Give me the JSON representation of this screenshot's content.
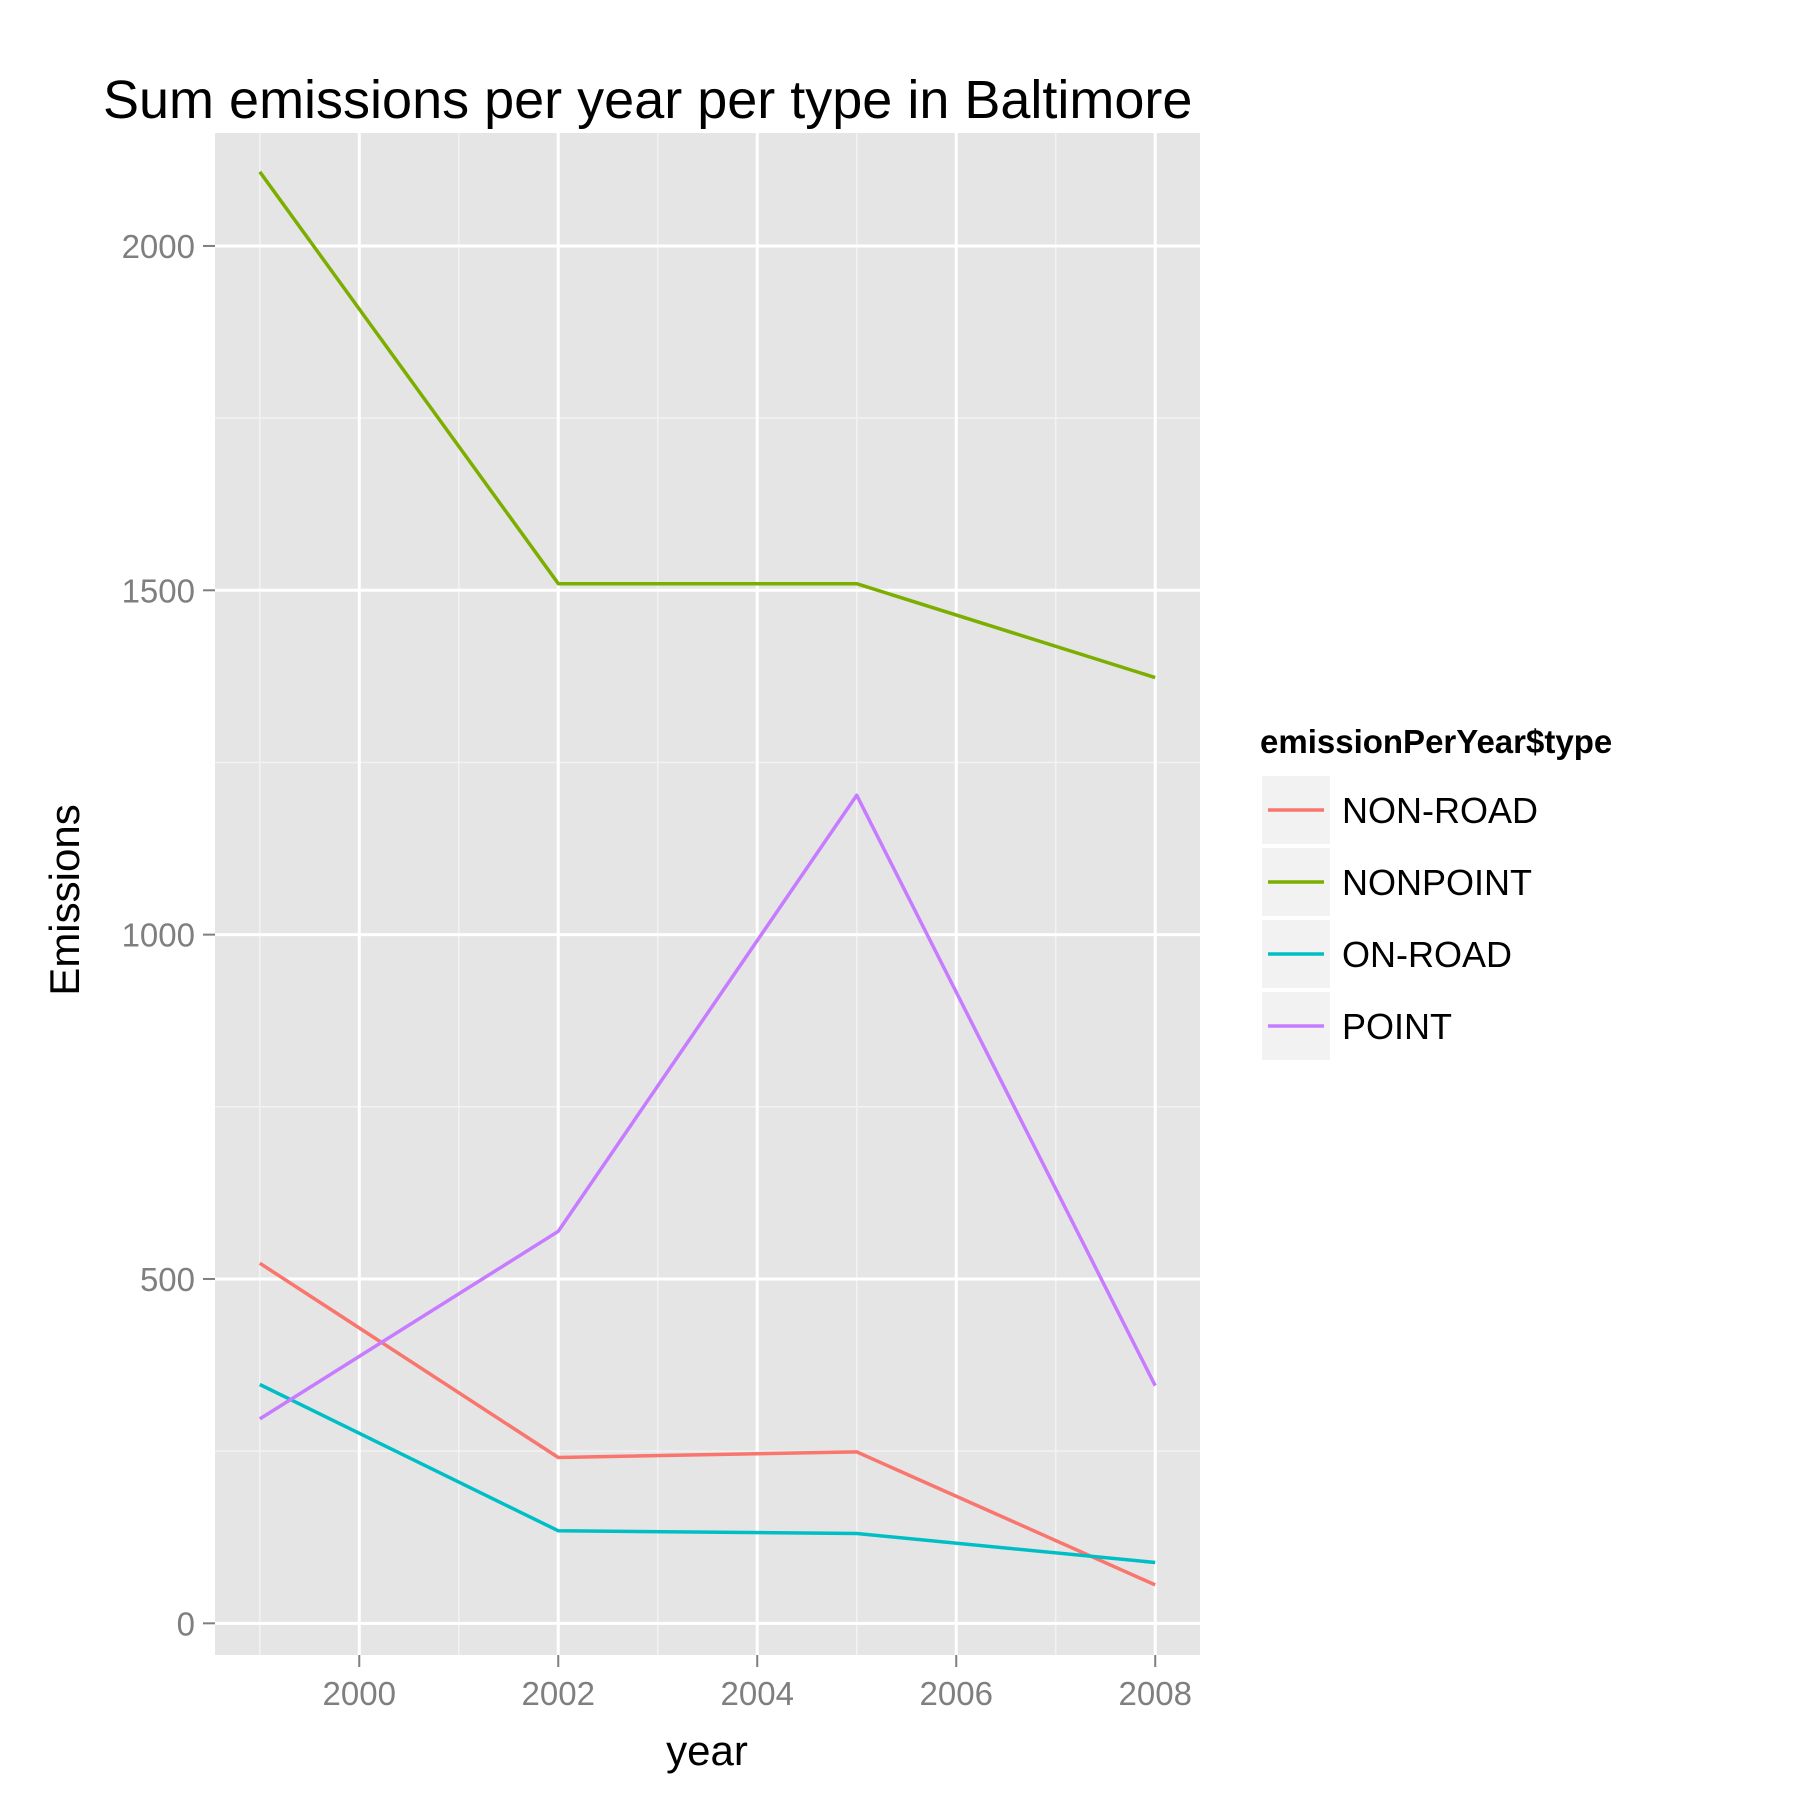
{
  "chart_data": {
    "type": "line",
    "title": "Sum emissions per year per type in Baltimore",
    "xlabel": "year",
    "ylabel": "Emissions",
    "x": [
      1999,
      2002,
      2005,
      2008
    ],
    "xlim": [
      1998.55,
      2008.45
    ],
    "ylim": [
      -46,
      2164
    ],
    "xticks": [
      2000,
      2002,
      2004,
      2006,
      2008
    ],
    "xminor": [
      1999,
      2001,
      2003,
      2005,
      2007
    ],
    "yticks": [
      0,
      500,
      1000,
      1500,
      2000
    ],
    "yminor": [
      250,
      750,
      1250,
      1750
    ],
    "grid": true,
    "panel_background": "#e5e5e5",
    "legend": {
      "title": "emissionPerYear$type",
      "placement": "right"
    },
    "series": [
      {
        "name": "NON-ROAD",
        "color": "#f8766d",
        "values": [
          522.9,
          240.8,
          248.9,
          55.8
        ]
      },
      {
        "name": "NONPOINT",
        "color": "#7cae00",
        "values": [
          2107.6,
          1509.5,
          1509.5,
          1373.2
        ]
      },
      {
        "name": "ON-ROAD",
        "color": "#00bfc4",
        "values": [
          346.8,
          134.3,
          130.4,
          88.3
        ]
      },
      {
        "name": "POINT",
        "color": "#c77cff",
        "values": [
          296.8,
          569.3,
          1202.5,
          344.98
        ]
      }
    ]
  }
}
